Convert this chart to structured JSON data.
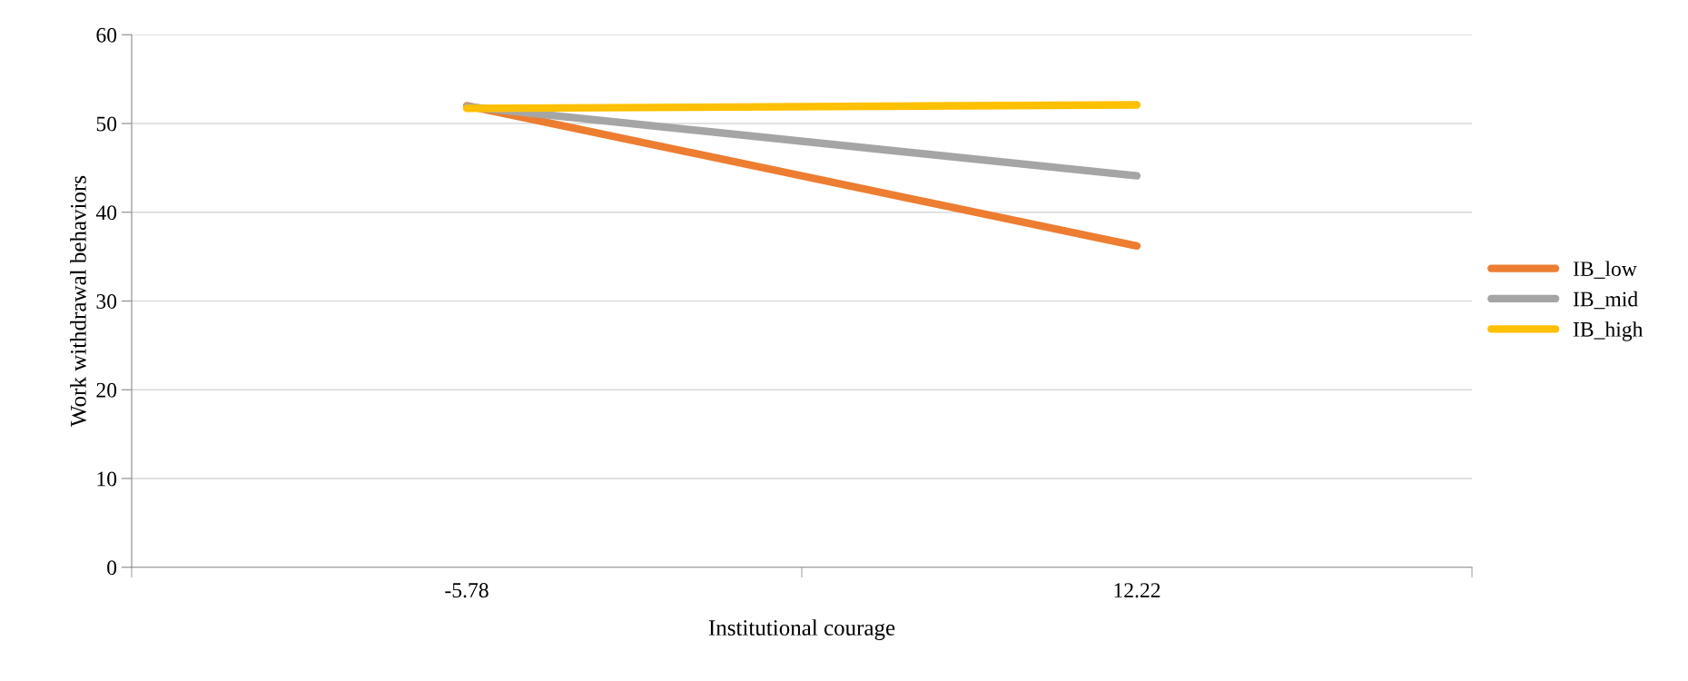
{
  "chart_data": {
    "type": "line",
    "xlabel": "Institutional courage",
    "ylabel": "Work withdrawal behaviors",
    "categories": [
      "-5.78",
      "12.22"
    ],
    "series": [
      {
        "name": "IB_low",
        "color": "#ed7d31",
        "values": [
          52.0,
          36.2
        ]
      },
      {
        "name": "IB_mid",
        "color": "#a5a5a5",
        "values": [
          51.9,
          44.1
        ]
      },
      {
        "name": "IB_high",
        "color": "#ffc000",
        "values": [
          51.7,
          52.1
        ]
      }
    ],
    "ylim": [
      0,
      60
    ],
    "yticks": [
      0,
      10,
      20,
      30,
      40,
      50,
      60
    ],
    "grid": "y",
    "legend": "right",
    "marker": "none",
    "line_style": "solid"
  }
}
